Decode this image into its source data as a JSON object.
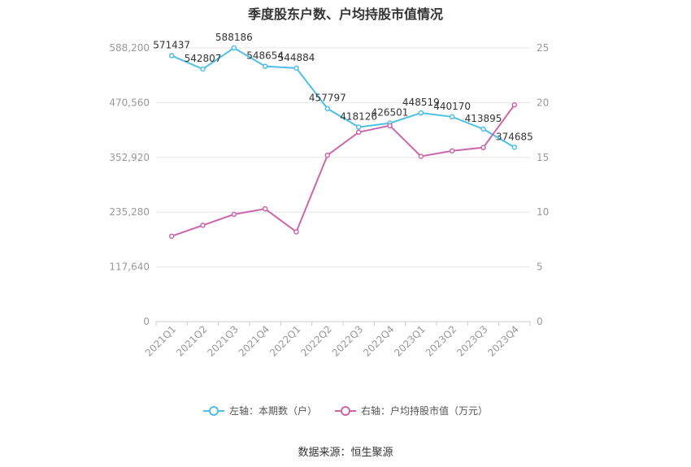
{
  "title": "季度股东户数、户均持股市值情况",
  "source": "数据来源：恒生聚源",
  "legend": {
    "left_label": "左轴：本期数（户）",
    "right_label": "右轴：户均持股市值（万元）"
  },
  "colors": {
    "holders": "#4dbfe8",
    "avg_value": "#cc66aa",
    "grid": "#e6e6e6",
    "axis_text": "#999999",
    "label_text": "#333333"
  },
  "chart_data": {
    "type": "line",
    "title": "季度股东户数、户均持股市值情况",
    "categories": [
      "2021Q1",
      "2021Q2",
      "2021Q3",
      "2021Q4",
      "2022Q1",
      "2022Q2",
      "2022Q3",
      "2022Q4",
      "2023Q1",
      "2023Q2",
      "2023Q3",
      "2023Q4"
    ],
    "left_axis": {
      "ticks": [
        "0",
        "117,640",
        "235,280",
        "352,920",
        "470,560",
        "588,200"
      ],
      "ylim": [
        0,
        588200
      ]
    },
    "right_axis": {
      "ticks": [
        "0",
        "5",
        "10",
        "15",
        "20",
        "25"
      ],
      "ylim": [
        0,
        25
      ]
    },
    "series": [
      {
        "name": "左轴：本期数（户）",
        "axis": "left",
        "values": [
          571437,
          542807,
          588186,
          548654,
          544884,
          457797,
          418126,
          426501,
          448519,
          440170,
          413895,
          374685
        ],
        "labels": [
          "571437",
          "542807",
          "588186",
          "548654",
          "544884",
          "457797",
          "418126",
          "426501",
          "448519",
          "440170",
          "413895",
          "374685"
        ]
      },
      {
        "name": "右轴：户均持股市值（万元）",
        "axis": "right",
        "values": [
          7.8,
          8.8,
          9.8,
          10.3,
          8.2,
          15.2,
          17.3,
          17.9,
          15.1,
          15.6,
          15.9,
          19.8
        ]
      }
    ],
    "grid": true,
    "legend_position": "bottom"
  }
}
